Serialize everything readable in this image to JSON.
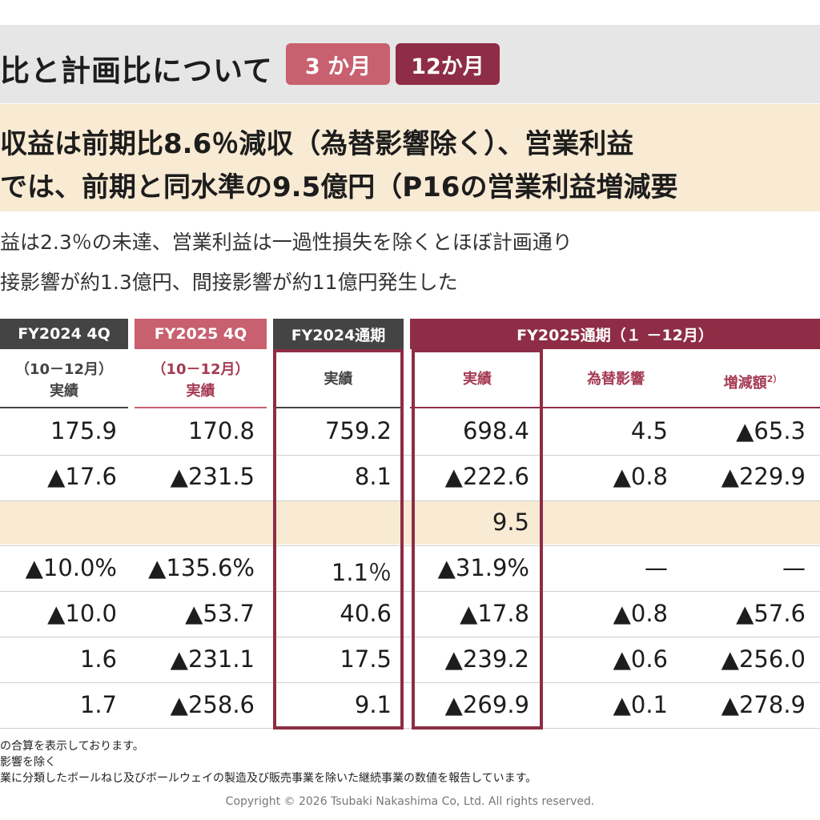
{
  "header": {
    "title": "比と計画比について",
    "tabs": [
      {
        "label": "3 か月"
      },
      {
        "label": "12か月"
      }
    ]
  },
  "highlight": {
    "line1": "収益は前期比8.6％減収（為替影響除く）、営業利益",
    "line2": "では、前期と同水準の9.5億円（P16の営業利益増減要"
  },
  "bullets": [
    "益は2.3％の未達、営業利益は一過性損失を除くとほぼ計画通り",
    "接影響が約1.3億円、間接影響が約11億円発生した"
  ],
  "table": {
    "column_groups": [
      {
        "label": "FY2024 4Q"
      },
      {
        "label": "FY2025 4Q"
      },
      {
        "label": "FY2024通期"
      },
      {
        "label": "FY2025通期（１ －12月）"
      }
    ],
    "subheaders": {
      "fy2024q4_period": "（10－12月）",
      "fy2024q4_label": "実績",
      "fy2025q4_period": "（10－12月）",
      "fy2025q4_label": "実績",
      "fy2024_full": "実績",
      "fy2025_actual": "実績",
      "fy2025_fx": "為替影響",
      "fy2025_change": "増減額",
      "fy2025_change_note": "2）"
    },
    "rows": [
      [
        "175.9",
        "170.8",
        "759.2",
        "698.4",
        "4.5",
        "▲65.3"
      ],
      [
        "▲17.6",
        "▲231.5",
        "8.1",
        "▲222.6",
        "▲0.8",
        "▲229.9"
      ],
      [
        "",
        "",
        "",
        "9.5",
        "",
        ""
      ],
      [
        "▲10.0%",
        "▲135.6%",
        "1.1％",
        "▲31.9%",
        "—",
        "—"
      ],
      [
        "▲10.0",
        "▲53.7",
        "40.6",
        "▲17.8",
        "▲0.8",
        "▲57.6"
      ],
      [
        "1.6",
        "▲231.1",
        "17.5",
        "▲239.2",
        "▲0.6",
        "▲256.0"
      ],
      [
        "1.7",
        "▲258.6",
        "9.1",
        "▲269.9",
        "▲0.1",
        "▲278.9"
      ]
    ]
  },
  "footnotes": [
    "の合算を表示しております。",
    "影響を除く",
    "業に分類したボールねじ及びボールウェイの製造及び販売事業を除いた継続事業の数値を報告しています。"
  ],
  "copyright": "Copyright © 2026 Tsubaki Nakashima Co, Ltd. All rights reserved.",
  "colors": {
    "dark_header": "#444444",
    "pink_accent": "#c86070",
    "wine_accent": "#8e2d45",
    "highlight_bg": "#f8ead3",
    "header_bg": "#e6e6e6"
  }
}
